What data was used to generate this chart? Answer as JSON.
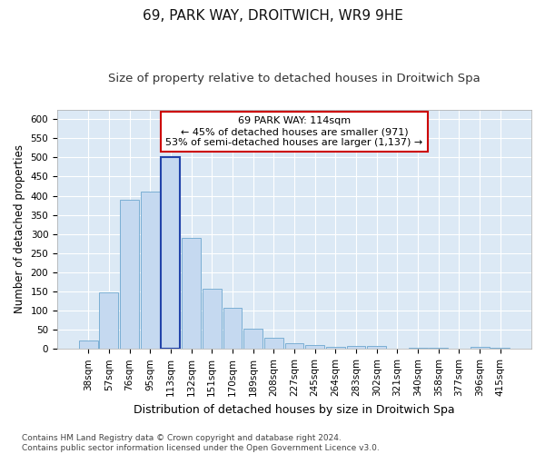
{
  "title": "69, PARK WAY, DROITWICH, WR9 9HE",
  "subtitle": "Size of property relative to detached houses in Droitwich Spa",
  "xlabel": "Distribution of detached houses by size in Droitwich Spa",
  "ylabel": "Number of detached properties",
  "categories": [
    "38sqm",
    "57sqm",
    "76sqm",
    "95sqm",
    "113sqm",
    "132sqm",
    "151sqm",
    "170sqm",
    "189sqm",
    "208sqm",
    "227sqm",
    "245sqm",
    "264sqm",
    "283sqm",
    "302sqm",
    "321sqm",
    "340sqm",
    "358sqm",
    "377sqm",
    "396sqm",
    "415sqm"
  ],
  "values": [
    22,
    148,
    390,
    410,
    500,
    290,
    157,
    108,
    52,
    30,
    15,
    10,
    6,
    8,
    9,
    0,
    4,
    3,
    0,
    5,
    3
  ],
  "bar_color": "#c5d9f0",
  "bar_edge_color": "#7bafd4",
  "highlight_bar_index": 4,
  "highlight_bar_edge_color": "#2244aa",
  "annotation_text": "69 PARK WAY: 114sqm\n← 45% of detached houses are smaller (971)\n53% of semi-detached houses are larger (1,137) →",
  "annotation_box_color": "#ffffff",
  "annotation_box_edge_color": "#cc0000",
  "ylim": [
    0,
    625
  ],
  "yticks": [
    0,
    50,
    100,
    150,
    200,
    250,
    300,
    350,
    400,
    450,
    500,
    550,
    600
  ],
  "footnote": "Contains HM Land Registry data © Crown copyright and database right 2024.\nContains public sector information licensed under the Open Government Licence v3.0.",
  "background_color": "#ffffff",
  "plot_bg_color": "#dce9f5",
  "grid_color": "#ffffff",
  "title_fontsize": 11,
  "subtitle_fontsize": 9.5,
  "tick_fontsize": 7.5,
  "xlabel_fontsize": 9,
  "ylabel_fontsize": 8.5,
  "footnote_fontsize": 6.5,
  "annot_fontsize": 8
}
